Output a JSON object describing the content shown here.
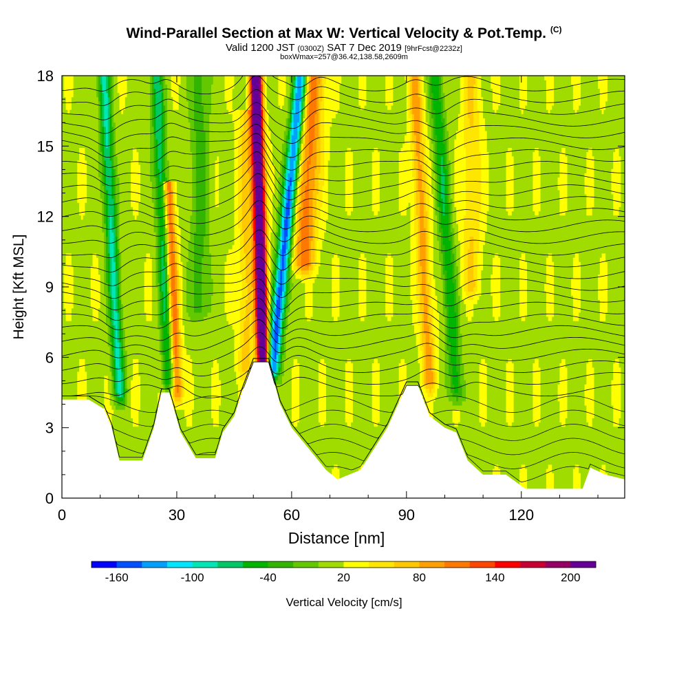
{
  "header": {
    "title": "Wind-Parallel Section at Max W: Vertical Velocity & Pot.Temp.",
    "copyright": "(C)",
    "valid_prefix": "Valid 1200 JST",
    "valid_utc": "(0300Z)",
    "valid_date": "SAT 7 Dec 2019",
    "forecast_info": "[9hrFcst@2232z]",
    "box_info": "boxWmax=257@36.42,138.58,2609m"
  },
  "chart_data": {
    "type": "heatmap",
    "xlabel": "Distance [nm]",
    "ylabel": "Height [Kft MSL]",
    "xlim": [
      0,
      147
    ],
    "ylim": [
      0,
      18
    ],
    "xticks": [
      0,
      30,
      60,
      90,
      120
    ],
    "yticks": [
      0,
      3,
      6,
      9,
      12,
      15,
      18
    ],
    "background_w": 15,
    "colorbar": {
      "label": "Vertical Velocity [cm/s]",
      "tick_labels": [
        -160,
        -100,
        -40,
        20,
        80,
        140,
        200
      ],
      "levels": [
        -180,
        -160,
        -140,
        -120,
        -100,
        -80,
        -60,
        -40,
        -20,
        0,
        20,
        40,
        60,
        80,
        100,
        120,
        140,
        160,
        180,
        200,
        220
      ],
      "colors": [
        "#0000ff",
        "#0050ff",
        "#00a0ff",
        "#00e6ff",
        "#00e6b4",
        "#00c864",
        "#00b400",
        "#32b400",
        "#64c800",
        "#a0dc00",
        "#ffff00",
        "#ffe600",
        "#ffc800",
        "#ffa000",
        "#ff7800",
        "#ff4600",
        "#ff0000",
        "#c80032",
        "#960064",
        "#640096"
      ]
    },
    "features": [
      {
        "name": "updraft",
        "x": 52.5,
        "half_width": 1.6,
        "peak_w": 257,
        "z_bottom": 5.8,
        "z_top": 18,
        "tilt": -0.15
      },
      {
        "name": "downdraft",
        "x": 55,
        "half_width": 1.8,
        "peak_w": -170,
        "z_bottom": 5.5,
        "z_top": 18,
        "tilt": 0.6
      },
      {
        "name": "updraft",
        "x": 63,
        "half_width": 3.0,
        "peak_w": 95,
        "z_bottom": 10,
        "z_top": 18,
        "tilt": 0.35
      },
      {
        "name": "downdraft",
        "x": 15,
        "half_width": 1.6,
        "peak_w": -100,
        "z_bottom": 4.5,
        "z_top": 18,
        "tilt": -0.3
      },
      {
        "name": "updraft",
        "x": 30,
        "half_width": 1.5,
        "peak_w": 110,
        "z_bottom": 4.5,
        "z_top": 13,
        "tilt": -0.25
      },
      {
        "name": "downdraft",
        "x": 28,
        "half_width": 1.6,
        "peak_w": -90,
        "z_bottom": 5,
        "z_top": 18,
        "tilt": -0.25
      },
      {
        "name": "updraft",
        "x": 48,
        "half_width": 2.0,
        "peak_w": 50,
        "z_bottom": 5.5,
        "z_top": 16,
        "tilt": 0
      },
      {
        "name": "updraft",
        "x": 96,
        "half_width": 1.8,
        "peak_w": 75,
        "z_bottom": 5,
        "z_top": 18,
        "tilt": -0.3
      },
      {
        "name": "downdraft",
        "x": 103,
        "half_width": 1.8,
        "peak_w": -70,
        "z_bottom": 4.5,
        "z_top": 18,
        "tilt": -0.4
      },
      {
        "name": "updraft",
        "x": 107,
        "half_width": 2.5,
        "peak_w": 45,
        "z_bottom": 9,
        "z_top": 18,
        "tilt": 0
      },
      {
        "name": "downdraft",
        "x": 36,
        "half_width": 2.5,
        "peak_w": -45,
        "z_bottom": 8,
        "z_top": 18,
        "tilt": 0
      }
    ],
    "terrain": [
      {
        "x": 0,
        "z": 4.2
      },
      {
        "x": 7,
        "z": 4.2
      },
      {
        "x": 11,
        "z": 3.8
      },
      {
        "x": 13,
        "z": 3.0
      },
      {
        "x": 15,
        "z": 1.6
      },
      {
        "x": 21,
        "z": 1.6
      },
      {
        "x": 24,
        "z": 3.0
      },
      {
        "x": 26,
        "z": 4.5
      },
      {
        "x": 28,
        "z": 4.5
      },
      {
        "x": 31,
        "z": 2.8
      },
      {
        "x": 35,
        "z": 1.7
      },
      {
        "x": 40,
        "z": 1.7
      },
      {
        "x": 42,
        "z": 2.8
      },
      {
        "x": 45,
        "z": 3.5
      },
      {
        "x": 47,
        "z": 4.5
      },
      {
        "x": 50,
        "z": 5.8
      },
      {
        "x": 54,
        "z": 5.8
      },
      {
        "x": 57,
        "z": 4.0
      },
      {
        "x": 60,
        "z": 3.0
      },
      {
        "x": 64,
        "z": 2.2
      },
      {
        "x": 69,
        "z": 1.2
      },
      {
        "x": 72,
        "z": 0.8
      },
      {
        "x": 78,
        "z": 1.2
      },
      {
        "x": 85,
        "z": 3.0
      },
      {
        "x": 90,
        "z": 4.8
      },
      {
        "x": 93,
        "z": 4.8
      },
      {
        "x": 96,
        "z": 3.5
      },
      {
        "x": 100,
        "z": 3.0
      },
      {
        "x": 103,
        "z": 2.8
      },
      {
        "x": 106,
        "z": 1.6
      },
      {
        "x": 110,
        "z": 1.0
      },
      {
        "x": 116,
        "z": 1.0
      },
      {
        "x": 121,
        "z": 0.4
      },
      {
        "x": 128,
        "z": 0.4
      },
      {
        "x": 136,
        "z": 0.4
      },
      {
        "x": 138,
        "z": 1.3
      },
      {
        "x": 142,
        "z": 1.0
      },
      {
        "x": 147,
        "z": 0.8
      }
    ],
    "theta_contours_z": [
      4.6,
      5.1,
      5.6,
      6.1,
      6.6,
      7.1,
      7.6,
      8.1,
      8.6,
      9.1,
      9.6,
      10.1,
      10.6,
      11.1,
      11.6,
      12.1,
      12.6,
      13.1,
      13.6,
      14.1,
      14.6,
      15.1,
      15.6,
      16.1,
      16.6,
      17.1,
      17.6
    ],
    "low_theta_contours_z": [
      1.0,
      1.6,
      2.2,
      2.8,
      3.4,
      4.0
    ]
  }
}
